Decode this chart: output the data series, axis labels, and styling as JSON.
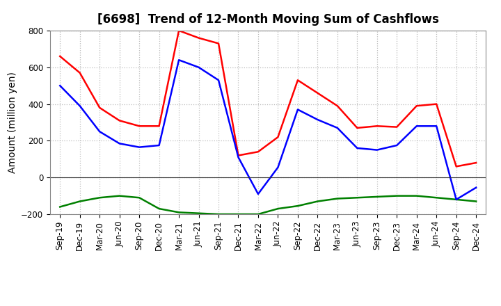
{
  "title": "[6698]  Trend of 12-Month Moving Sum of Cashflows",
  "ylabel": "Amount (million yen)",
  "xlabels": [
    "Sep-19",
    "Dec-19",
    "Mar-20",
    "Jun-20",
    "Sep-20",
    "Dec-20",
    "Mar-21",
    "Jun-21",
    "Sep-21",
    "Dec-21",
    "Mar-22",
    "Jun-22",
    "Sep-22",
    "Dec-22",
    "Mar-23",
    "Jun-23",
    "Sep-23",
    "Dec-23",
    "Mar-24",
    "Jun-24",
    "Sep-24",
    "Dec-24"
  ],
  "operating": [
    660,
    570,
    380,
    310,
    280,
    280,
    800,
    760,
    730,
    120,
    140,
    220,
    530,
    460,
    390,
    270,
    280,
    275,
    390,
    400,
    60,
    80
  ],
  "investing": [
    -160,
    -130,
    -110,
    -100,
    -110,
    -170,
    -190,
    -195,
    -200,
    -200,
    -200,
    -170,
    -155,
    -130,
    -115,
    -110,
    -105,
    -100,
    -100,
    -110,
    -120,
    -130
  ],
  "free": [
    500,
    390,
    250,
    185,
    165,
    175,
    640,
    600,
    530,
    110,
    -90,
    55,
    370,
    315,
    270,
    160,
    150,
    175,
    280,
    280,
    -120,
    -55
  ],
  "ylim": [
    -200,
    800
  ],
  "yticks": [
    -200,
    0,
    200,
    400,
    600,
    800
  ],
  "colors": {
    "operating": "#ff0000",
    "investing": "#008000",
    "free": "#0000ff"
  },
  "background_color": "#ffffff",
  "grid_color": "#bbbbbb",
  "linewidth": 1.8,
  "title_fontsize": 12,
  "axis_label_fontsize": 10,
  "tick_fontsize": 8.5
}
